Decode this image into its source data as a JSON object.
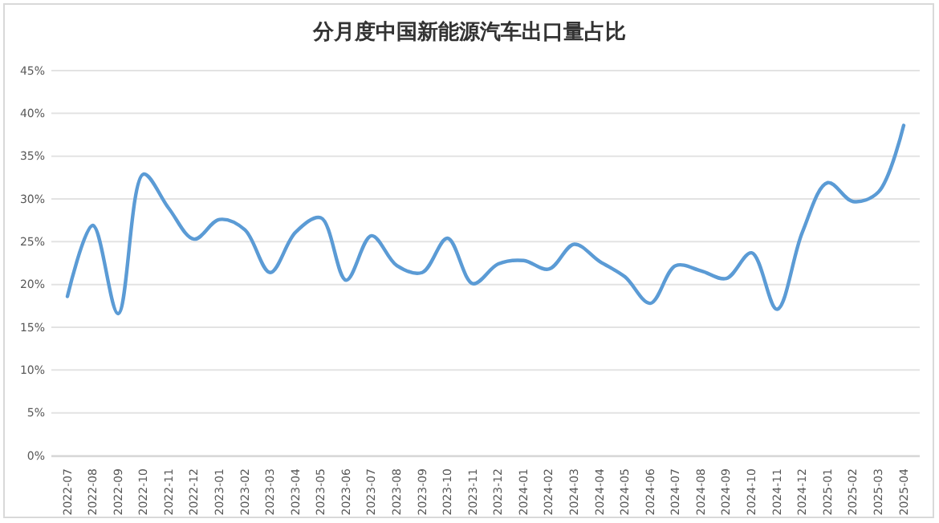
{
  "chart_data": {
    "type": "line",
    "title": "分月度中国新能源汽车出口量占比",
    "categories": [
      "2022-07",
      "2022-08",
      "2022-09",
      "2022-10",
      "2022-11",
      "2022-12",
      "2023-01",
      "2023-02",
      "2023-03",
      "2023-04",
      "2023-05",
      "2023-06",
      "2023-07",
      "2023-08",
      "2023-09",
      "2023-10",
      "2023-11",
      "2023-12",
      "2024-01",
      "2024-02",
      "2024-03",
      "2024-04",
      "2024-05",
      "2024-06",
      "2024-07",
      "2024-08",
      "2024-09",
      "2024-10",
      "2024-11",
      "2024-12",
      "2025-01",
      "2025-02",
      "2025-03",
      "2025-04"
    ],
    "series": [
      {
        "color": "#5b9bd5",
        "values": [
          18.6,
          26.9,
          16.6,
          32.9,
          28.9,
          25.3,
          27.6,
          26.4,
          21.4,
          26.1,
          27.8,
          20.5,
          25.7,
          22.2,
          21.4,
          25.4,
          20.1,
          22.4,
          22.8,
          21.8,
          24.7,
          22.7,
          20.9,
          17.8,
          22.2,
          21.6,
          20.7,
          23.7,
          17.1,
          26.1,
          31.9,
          29.7,
          30.8,
          38.6
        ]
      }
    ],
    "ylim": [
      0,
      45
    ],
    "yticks": [
      {
        "value": 0,
        "label": "0%"
      },
      {
        "value": 5,
        "label": "5%"
      },
      {
        "value": 10,
        "label": "10%"
      },
      {
        "value": 15,
        "label": "15%"
      },
      {
        "value": 20,
        "label": "20%"
      },
      {
        "value": 25,
        "label": "25%"
      },
      {
        "value": 30,
        "label": "30%"
      },
      {
        "value": 35,
        "label": "35%"
      },
      {
        "value": 40,
        "label": "40%"
      },
      {
        "value": 45,
        "label": "45%"
      }
    ],
    "grid": "y",
    "marker": "none",
    "line_style": "solid"
  }
}
